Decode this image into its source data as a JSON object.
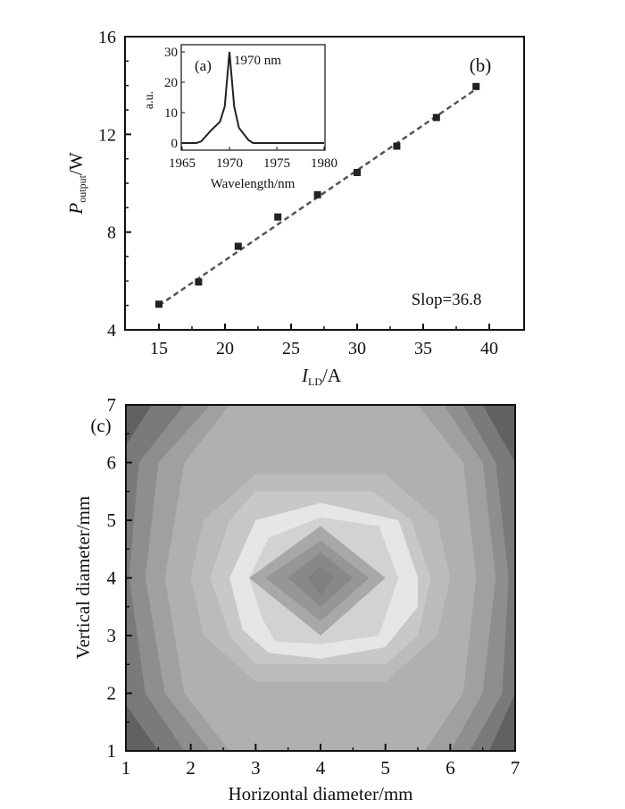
{
  "chart_data": [
    {
      "type": "scatter",
      "panel_label": "(b)",
      "xlabel_main": "I",
      "xlabel_sub": "LD",
      "xlabel_unit": "/A",
      "ylabel_main": "P",
      "ylabel_sub": "output",
      "ylabel_unit": "/W",
      "xlim": [
        12.5,
        42.5
      ],
      "ylim": [
        4,
        16
      ],
      "xticks": [
        15,
        20,
        25,
        30,
        35,
        40
      ],
      "yticks": [
        4,
        8,
        12,
        16
      ],
      "x": [
        15,
        18,
        21,
        24,
        27,
        30,
        33,
        36,
        39
      ],
      "y": [
        5.05,
        5.96,
        7.42,
        8.62,
        9.53,
        10.44,
        11.52,
        12.69,
        13.96
      ],
      "fit": {
        "x": [
          15,
          39
        ],
        "y": [
          5.0,
          13.85
        ],
        "style": "dashed"
      },
      "annotation": "Slop=36.8"
    },
    {
      "type": "line",
      "panel_label": "(a)",
      "xlabel": "Wavelength/nm",
      "ylabel": "a.u.",
      "xlim": [
        1965,
        1980
      ],
      "ylim": [
        -2,
        32
      ],
      "xticks": [
        1965,
        1970,
        1975,
        1980
      ],
      "yticks": [
        0,
        10,
        20,
        30
      ],
      "x": [
        1965,
        1966,
        1966.5,
        1967,
        1968,
        1969,
        1969.5,
        1970,
        1970.5,
        1971,
        1972,
        1972.5,
        1975,
        1980
      ],
      "y": [
        0,
        0,
        0,
        0.5,
        4,
        7,
        12,
        30,
        12,
        5,
        1,
        0,
        0,
        0
      ],
      "annotation": "1970 nm"
    },
    {
      "type": "heatmap",
      "panel_label": "(c)",
      "xlabel": "Horizontal diameter/mm",
      "ylabel": "Vertical diameter/mm",
      "xlim": [
        1,
        7
      ],
      "ylim": [
        1,
        7
      ],
      "xticks": [
        1,
        2,
        3,
        4,
        5,
        6,
        7
      ],
      "yticks": [
        1,
        2,
        3,
        4,
        5,
        6,
        7
      ],
      "background": "#616161",
      "levels": [
        {
          "color": "#7a7a7a",
          "points": [
            [
              1.5,
              1
            ],
            [
              6.6,
              1
            ],
            [
              7,
              2
            ],
            [
              7,
              6
            ],
            [
              6.5,
              7
            ],
            [
              1.4,
              7
            ],
            [
              1,
              6.3
            ],
            [
              1,
              1.8
            ]
          ]
        },
        {
          "color": "#8e8e8e",
          "points": [
            [
              1.9,
              1
            ],
            [
              6.3,
              1
            ],
            [
              6.8,
              2
            ],
            [
              6.9,
              4
            ],
            [
              6.7,
              6
            ],
            [
              6.2,
              7
            ],
            [
              1.9,
              7
            ],
            [
              1.2,
              6
            ],
            [
              1.05,
              4
            ],
            [
              1.3,
              2
            ]
          ]
        },
        {
          "color": "#a0a0a0",
          "points": [
            [
              2.3,
              1
            ],
            [
              6.0,
              1
            ],
            [
              6.5,
              2
            ],
            [
              6.7,
              4
            ],
            [
              6.5,
              6
            ],
            [
              5.9,
              7
            ],
            [
              2.3,
              7
            ],
            [
              1.5,
              6
            ],
            [
              1.3,
              4
            ],
            [
              1.6,
              2
            ]
          ]
        },
        {
          "color": "#b0b0b0",
          "points": [
            [
              2.6,
              1
            ],
            [
              5.6,
              1
            ],
            [
              6.2,
              2
            ],
            [
              6.4,
              4
            ],
            [
              6.2,
              6
            ],
            [
              5.5,
              7
            ],
            [
              2.6,
              7
            ],
            [
              1.9,
              6
            ],
            [
              1.6,
              4
            ],
            [
              1.9,
              2
            ]
          ]
        },
        {
          "color": "#bbbbbb",
          "points": [
            [
              3,
              2.2
            ],
            [
              5,
              2.2
            ],
            [
              5.8,
              3
            ],
            [
              6,
              4
            ],
            [
              5.8,
              5
            ],
            [
              5,
              5.8
            ],
            [
              3,
              5.8
            ],
            [
              2.2,
              5
            ],
            [
              2,
              4
            ],
            [
              2.2,
              3
            ]
          ]
        },
        {
          "color": "#c8c8c8",
          "points": [
            [
              3,
              2.5
            ],
            [
              5,
              2.5
            ],
            [
              5.5,
              3
            ],
            [
              5.7,
              4
            ],
            [
              5.4,
              5
            ],
            [
              4.8,
              5.5
            ],
            [
              3,
              5.5
            ],
            [
              2.6,
              5
            ],
            [
              2.3,
              4
            ],
            [
              2.6,
              3
            ]
          ]
        },
        {
          "color": "#e6e6e6",
          "points": [
            [
              3.2,
              2.7
            ],
            [
              4,
              2.6
            ],
            [
              5,
              2.8
            ],
            [
              5.5,
              3.5
            ],
            [
              5.5,
              4
            ],
            [
              5.2,
              5
            ],
            [
              4,
              5.3
            ],
            [
              3,
              5
            ],
            [
              2.6,
              4
            ],
            [
              2.8,
              3.1
            ]
          ]
        },
        {
          "color": "#d2d2d2",
          "points": [
            [
              3.3,
              2.9
            ],
            [
              4,
              2.85
            ],
            [
              4.9,
              3
            ],
            [
              5.2,
              4
            ],
            [
              4.9,
              4.9
            ],
            [
              4,
              5.05
            ],
            [
              3.2,
              4.7
            ],
            [
              2.9,
              4
            ],
            [
              3.1,
              3.3
            ]
          ]
        },
        {
          "color": "#a8a8a8",
          "points": [
            [
              4,
              3
            ],
            [
              5,
              4
            ],
            [
              4,
              4.9
            ],
            [
              2.9,
              4
            ]
          ]
        },
        {
          "color": "#969696",
          "points": [
            [
              4,
              3.25
            ],
            [
              4.75,
              4
            ],
            [
              4,
              4.65
            ],
            [
              3.15,
              4
            ]
          ]
        },
        {
          "color": "#888888",
          "points": [
            [
              4,
              3.5
            ],
            [
              4.5,
              4
            ],
            [
              4,
              4.45
            ],
            [
              3.5,
              4
            ]
          ]
        },
        {
          "color": "#7f7f7f",
          "points": [
            [
              4,
              3.7
            ],
            [
              4.2,
              4
            ],
            [
              4,
              4.2
            ],
            [
              3.8,
              4
            ]
          ]
        }
      ]
    }
  ]
}
